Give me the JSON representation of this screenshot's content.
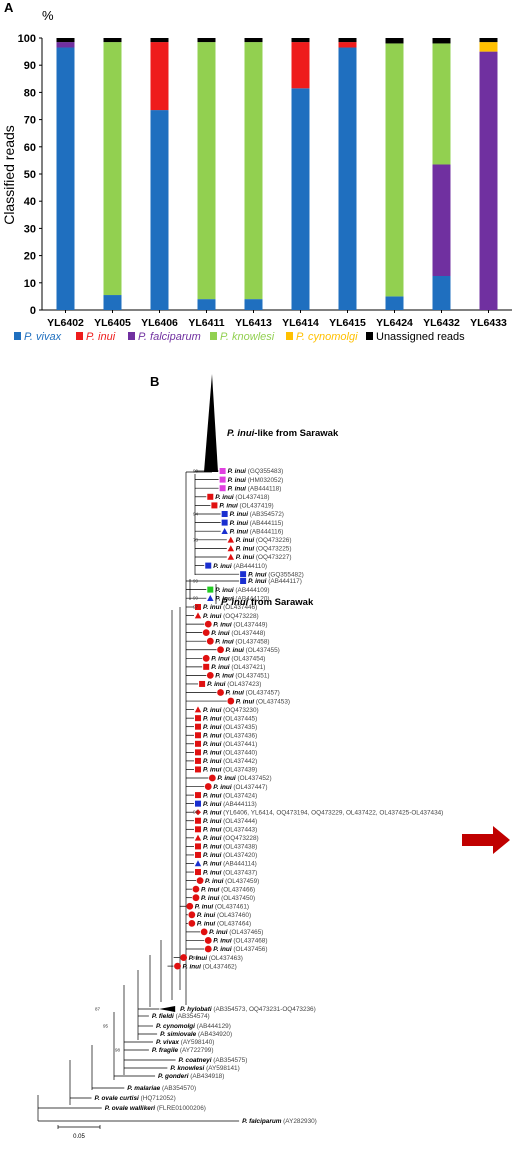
{
  "panel_a": {
    "label": "A",
    "unit_label": "%",
    "ylabel": "Classified reads",
    "legend": [
      {
        "key": "vivax",
        "text": "P. vivax",
        "color": "#1f6fbf",
        "italic": true
      },
      {
        "key": "inui",
        "text": "P. inui",
        "color": "#ee1c1c",
        "italic": true
      },
      {
        "key": "falciparum",
        "text": "P. falciparum",
        "color": "#7030a0",
        "italic": true
      },
      {
        "key": "knowlesi",
        "text": "P. knowlesi",
        "color": "#92d050",
        "italic": true
      },
      {
        "key": "cynomolgi",
        "text": "P. cynomolgi",
        "color": "#ffc000",
        "italic": true
      },
      {
        "key": "unassigned",
        "text": "Unassigned reads",
        "color": "#000000",
        "italic": false
      }
    ]
  },
  "chart_data": {
    "type": "bar",
    "stacked": true,
    "categories": [
      "YL6402",
      "YL6405",
      "YL6406",
      "YL6411",
      "YL6413",
      "YL6414",
      "YL6415",
      "YL6424",
      "YL6432",
      "YL6433"
    ],
    "ylabel": "Classified reads",
    "ylim": [
      0,
      100
    ],
    "yticks": [
      0,
      10,
      20,
      30,
      40,
      50,
      60,
      70,
      80,
      90,
      100
    ],
    "grid": false,
    "legend_position": "bottom",
    "series": [
      {
        "name": "P. vivax",
        "color": "#1f6fbf",
        "values": [
          96.5,
          5.5,
          73.5,
          4,
          4,
          81.5,
          96.5,
          5,
          12.5,
          0
        ]
      },
      {
        "name": "P. inui",
        "color": "#ee1c1c",
        "values": [
          0,
          0,
          25,
          0,
          0,
          17,
          2,
          0,
          0,
          0
        ]
      },
      {
        "name": "P. falciparum",
        "color": "#7030a0",
        "values": [
          2,
          0,
          0,
          0,
          0,
          0,
          0,
          0,
          41,
          95
        ]
      },
      {
        "name": "P. knowlesi",
        "color": "#92d050",
        "values": [
          0,
          93,
          0,
          94.5,
          94.5,
          0,
          0,
          93,
          44.5,
          0
        ]
      },
      {
        "name": "P. cynomolgi",
        "color": "#ffc000",
        "values": [
          0,
          0,
          0,
          0,
          0,
          0,
          0,
          0,
          0,
          3.5
        ]
      },
      {
        "name": "Unassigned reads",
        "color": "#000000",
        "values": [
          1.5,
          1.5,
          1.5,
          1.5,
          1.5,
          1.5,
          1.5,
          2,
          2,
          1.5
        ]
      }
    ]
  },
  "panel_b": {
    "label": "B",
    "clade_like": {
      "italic": "P. inui",
      "rest": "-like from Sarawak"
    },
    "clade_sarawak": {
      "italic": "P. inui",
      "rest": " from Sarawak"
    },
    "scale_label": "0.05",
    "marker_colors": {
      "magenta": "#e040e0",
      "red": "#e01010",
      "blue": "#1a2fd0",
      "green": "#22cc22",
      "black": "#000000"
    },
    "arrow_color": "#c00000",
    "bootstraps": [
      {
        "text": "99",
        "row": 0
      },
      {
        "text": "94",
        "row": 5
      },
      {
        "text": "73",
        "row": 8
      },
      {
        "text": "99",
        "row": 13
      },
      {
        "text": "99",
        "row": 15
      },
      {
        "text": "97",
        "row": 16
      },
      {
        "text": "98",
        "row": 40
      },
      {
        "text": "69",
        "row": 57
      },
      {
        "text": "87",
        "row": 59
      },
      {
        "text": "95",
        "row": 61
      },
      {
        "text": "98",
        "row": 64
      },
      {
        "text": "99",
        "row": 73
      }
    ],
    "taxa": [
      {
        "name": "P. inui",
        "acc": "GQ355483",
        "marker": "square",
        "color": "magenta",
        "depth": 0.92
      },
      {
        "name": "P. inui",
        "acc": "HM032052",
        "marker": "square",
        "color": "magenta",
        "depth": 0.92
      },
      {
        "name": "P. inui",
        "acc": "AB444118",
        "marker": "square",
        "color": "magenta",
        "depth": 0.92
      },
      {
        "name": "P. inui",
        "acc": "OL437418",
        "marker": "square",
        "color": "red",
        "depth": 0.86
      },
      {
        "name": "P. inui",
        "acc": "OL437419",
        "marker": "square",
        "color": "red",
        "depth": 0.88
      },
      {
        "name": "P. inui",
        "acc": "AB354572",
        "marker": "square",
        "color": "blue",
        "depth": 0.93
      },
      {
        "name": "P. inui",
        "acc": "AB444115",
        "marker": "square",
        "color": "blue",
        "depth": 0.93
      },
      {
        "name": "P. inui",
        "acc": "AB444116",
        "marker": "triangle",
        "color": "blue",
        "depth": 0.93
      },
      {
        "name": "P. inui",
        "acc": "OQ473226",
        "marker": "triangle",
        "color": "red",
        "depth": 0.96
      },
      {
        "name": "P. inui",
        "acc": "OQ473225",
        "marker": "triangle",
        "color": "red",
        "depth": 0.96
      },
      {
        "name": "P. inui",
        "acc": "OQ473227",
        "marker": "triangle",
        "color": "red",
        "depth": 0.96
      },
      {
        "name": "P. inui",
        "acc": "AB444110",
        "marker": "square",
        "color": "blue",
        "depth": 0.85
      },
      {
        "name": "P. inui",
        "acc": "GQ355482",
        "marker": "square",
        "color": "blue",
        "depth": 1.02
      },
      {
        "name": "P. inui",
        "acc": "AB444117",
        "marker": "square",
        "color": "blue",
        "depth": 1.02
      },
      {
        "name": "P. inui",
        "acc": "AB444109",
        "marker": "square",
        "color": "green",
        "depth": 0.86
      },
      {
        "name": "P. inui",
        "acc": "AB444120",
        "marker": "triangle",
        "color": "blue",
        "depth": 0.86
      },
      {
        "name": "P. inui",
        "acc": "OL437446",
        "marker": "square",
        "color": "red",
        "depth": 0.8
      },
      {
        "name": "P. inui",
        "acc": "OQ473228",
        "marker": "triangle",
        "color": "red",
        "depth": 0.8
      },
      {
        "name": "P. inui",
        "acc": "OL437449",
        "marker": "circle",
        "color": "red",
        "depth": 0.85
      },
      {
        "name": "P. inui",
        "acc": "OL437448",
        "marker": "circle",
        "color": "red",
        "depth": 0.84
      },
      {
        "name": "P. inui",
        "acc": "OL437458",
        "marker": "circle",
        "color": "red",
        "depth": 0.86
      },
      {
        "name": "P. inui",
        "acc": "OL437455",
        "marker": "circle",
        "color": "red",
        "depth": 0.91
      },
      {
        "name": "P. inui",
        "acc": "OL437454",
        "marker": "circle",
        "color": "red",
        "depth": 0.84
      },
      {
        "name": "P. inui",
        "acc": "OL437421",
        "marker": "square",
        "color": "red",
        "depth": 0.84
      },
      {
        "name": "P. inui",
        "acc": "OL437451",
        "marker": "circle",
        "color": "red",
        "depth": 0.86
      },
      {
        "name": "P. inui",
        "acc": "OL437423",
        "marker": "square",
        "color": "red",
        "depth": 0.82
      },
      {
        "name": "P. inui",
        "acc": "OL437457",
        "marker": "circle",
        "color": "red",
        "depth": 0.91
      },
      {
        "name": "P. inui",
        "acc": "OL437453",
        "marker": "circle",
        "color": "red",
        "depth": 0.96
      },
      {
        "name": "P. inui",
        "acc": "OQ473230",
        "marker": "triangle",
        "color": "red",
        "depth": 0.8
      },
      {
        "name": "P. inui",
        "acc": "OL437445",
        "marker": "square",
        "color": "red",
        "depth": 0.8
      },
      {
        "name": "P. inui",
        "acc": "OL437435",
        "marker": "square",
        "color": "red",
        "depth": 0.8
      },
      {
        "name": "P. inui",
        "acc": "OL437436",
        "marker": "square",
        "color": "red",
        "depth": 0.8
      },
      {
        "name": "P. inui",
        "acc": "OL437441",
        "marker": "square",
        "color": "red",
        "depth": 0.8
      },
      {
        "name": "P. inui",
        "acc": "OL437440",
        "marker": "square",
        "color": "red",
        "depth": 0.8
      },
      {
        "name": "P. inui",
        "acc": "OL437442",
        "marker": "square",
        "color": "red",
        "depth": 0.8
      },
      {
        "name": "P. inui",
        "acc": "OL437439",
        "marker": "square",
        "color": "red",
        "depth": 0.8
      },
      {
        "name": "P. inui",
        "acc": "OL437452",
        "marker": "circle",
        "color": "red",
        "depth": 0.87
      },
      {
        "name": "P. inui",
        "acc": "OL437447",
        "marker": "circle",
        "color": "red",
        "depth": 0.85
      },
      {
        "name": "P. inui",
        "acc": "OL437424",
        "marker": "square",
        "color": "red",
        "depth": 0.8
      },
      {
        "name": "P. inui",
        "acc": "AB444113",
        "marker": "square",
        "color": "blue",
        "depth": 0.8
      },
      {
        "name": "P. inui",
        "acc": "YL6406, YL6414, OQ473194, OQ473229, OL437422, OL437425-OL437434",
        "marker": "diamond",
        "color": "red",
        "depth": 0.8
      },
      {
        "name": "P. inui",
        "acc": "OL437444",
        "marker": "square",
        "color": "red",
        "depth": 0.8
      },
      {
        "name": "P. inui",
        "acc": "OL437443",
        "marker": "square",
        "color": "red",
        "depth": 0.8
      },
      {
        "name": "P. inui",
        "acc": "OQ473228",
        "marker": "triangle",
        "color": "red",
        "depth": 0.8
      },
      {
        "name": "P. inui",
        "acc": "OL437438",
        "marker": "square",
        "color": "red",
        "depth": 0.8
      },
      {
        "name": "P. inui",
        "acc": "OL437420",
        "marker": "square",
        "color": "red",
        "depth": 0.8
      },
      {
        "name": "P. inui",
        "acc": "AB444114",
        "marker": "triangle",
        "color": "blue",
        "depth": 0.8
      },
      {
        "name": "P. inui",
        "acc": "OL437437",
        "marker": "square",
        "color": "red",
        "depth": 0.8
      },
      {
        "name": "P. inui",
        "acc": "OL437459",
        "marker": "circle",
        "color": "red",
        "depth": 0.81
      },
      {
        "name": "P. inui",
        "acc": "OL437466",
        "marker": "circle",
        "color": "red",
        "depth": 0.79
      },
      {
        "name": "P. inui",
        "acc": "OL437450",
        "marker": "circle",
        "color": "red",
        "depth": 0.79
      },
      {
        "name": "P. inui",
        "acc": "OL437461",
        "marker": "circle",
        "color": "red",
        "depth": 0.76
      },
      {
        "name": "P. inui",
        "acc": "OL437460",
        "marker": "circle",
        "color": "red",
        "depth": 0.77
      },
      {
        "name": "P. inui",
        "acc": "OL437464",
        "marker": "circle",
        "color": "red",
        "depth": 0.77
      },
      {
        "name": "P. inui",
        "acc": "OL437465",
        "marker": "circle",
        "color": "red",
        "depth": 0.83
      },
      {
        "name": "P. inui",
        "acc": "OL437468",
        "marker": "circle",
        "color": "red",
        "depth": 0.85
      },
      {
        "name": "P. inui",
        "acc": "OL437456",
        "marker": "circle",
        "color": "red",
        "depth": 0.85
      },
      {
        "name": "P. inui",
        "acc": "OL437463",
        "marker": "circle",
        "color": "red",
        "depth": 0.73
      },
      {
        "name": "P. inui",
        "acc": "OL437462",
        "marker": "circle",
        "color": "red",
        "depth": 0.7
      },
      {
        "name": "P. hylobati",
        "acc": "AB354573, OQ473231-OQ473236",
        "marker": "collapsed",
        "color": "black",
        "depth": 0.63
      },
      {
        "name": "P. fieldi",
        "acc": "AB354574",
        "marker": "none",
        "color": "black",
        "depth": 0.58
      },
      {
        "name": "P. cynomolgi",
        "acc": "AB444129",
        "marker": "none",
        "color": "black",
        "depth": 0.6
      },
      {
        "name": "P. simiovale",
        "acc": "AB434920",
        "marker": "none",
        "color": "black",
        "depth": 0.62
      },
      {
        "name": "P. vivax",
        "acc": "AY598140",
        "marker": "none",
        "color": "black",
        "depth": 0.6
      },
      {
        "name": "P. fragile",
        "acc": "AY722799",
        "marker": "none",
        "color": "black",
        "depth": 0.58
      },
      {
        "name": "P. coatneyi",
        "acc": "AB354575",
        "marker": "none",
        "color": "black",
        "depth": 0.71
      },
      {
        "name": "P. knowlesi",
        "acc": "AY598141",
        "marker": "none",
        "color": "black",
        "depth": 0.67
      },
      {
        "name": "P. gonderi",
        "acc": "AB434918",
        "marker": "none",
        "color": "black",
        "depth": 0.61
      },
      {
        "name": "P. malariae",
        "acc": "AB354570",
        "marker": "none",
        "color": "black",
        "depth": 0.46
      },
      {
        "name": "P. ovale curtisi",
        "acc": "HQ712052",
        "marker": "none",
        "color": "black",
        "depth": 0.3
      },
      {
        "name": "P. ovale wallikeri",
        "acc": "FLRE01000206",
        "marker": "none",
        "color": "black",
        "depth": 0.35
      },
      {
        "name": "P. falciparum",
        "acc": "AY282930",
        "marker": "none",
        "color": "black",
        "depth": 1.02
      }
    ]
  }
}
